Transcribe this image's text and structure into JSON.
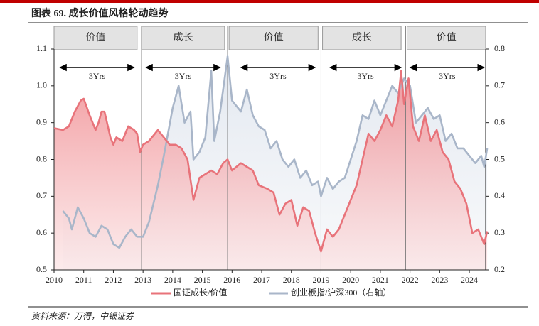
{
  "chart_data": {
    "type": "line",
    "title": "图表 69. 成长价值风格轮动趋势",
    "source": "资料来源：万得，中银证券",
    "xlim": [
      2010,
      2024.55
    ],
    "xticks": [
      2010,
      2011,
      2012,
      2013,
      2014,
      2015,
      2016,
      2017,
      2018,
      2019,
      2020,
      2021,
      2022,
      2023,
      2024
    ],
    "ylim": [
      0.5,
      1.1
    ],
    "yticks": [
      0.5,
      0.6,
      0.7,
      0.8,
      0.9,
      {
        "value": 1,
        "label": "1.0"
      },
      1.1
    ],
    "y2lim": [
      0.2,
      0.8
    ],
    "y2ticks": [
      0.2,
      0.3,
      0.4,
      0.5,
      0.6,
      0.7,
      0.8
    ],
    "regimes": [
      {
        "label": "价值",
        "start": 2010,
        "end": 2012.8
      },
      {
        "label": "成长",
        "start": 2012.95,
        "end": 2015.75
      },
      {
        "label": "价值",
        "start": 2015.9,
        "end": 2018.9
      },
      {
        "label": "成长",
        "start": 2019.05,
        "end": 2021.7
      },
      {
        "label": "价值",
        "start": 2021.9,
        "end": 2024.55
      }
    ],
    "dividers": [
      2012.95,
      2015.85,
      2019.0,
      2021.85
    ],
    "spans": [
      {
        "label": "3Yrs",
        "start": 2010.2,
        "end": 2012.7
      },
      {
        "label": "3Yrs",
        "start": 2013.1,
        "end": 2015.6
      },
      {
        "label": "3Yrs",
        "start": 2016.3,
        "end": 2018.8
      },
      {
        "label": "3Yrs",
        "start": 2019.3,
        "end": 2021.7
      },
      {
        "label": "3Yrs",
        "start": 2022.0,
        "end": 2024.5
      }
    ],
    "series": [
      {
        "name": "国证成长/价值",
        "color": "#e8737a",
        "x": [
          2010.0,
          2010.3,
          2010.5,
          2010.7,
          2010.9,
          2011.0,
          2011.2,
          2011.4,
          2011.5,
          2011.6,
          2011.7,
          2011.9,
          2012.0,
          2012.1,
          2012.3,
          2012.5,
          2012.7,
          2012.8,
          2012.9,
          2013.0,
          2013.2,
          2013.5,
          2013.7,
          2013.9,
          2014.1,
          2014.3,
          2014.5,
          2014.7,
          2014.9,
          2015.1,
          2015.3,
          2015.5,
          2015.7,
          2015.85,
          2016.0,
          2016.3,
          2016.5,
          2016.7,
          2016.9,
          2017.2,
          2017.4,
          2017.6,
          2017.8,
          2018.0,
          2018.2,
          2018.4,
          2018.6,
          2018.8,
          2019.0,
          2019.2,
          2019.4,
          2019.6,
          2019.8,
          2020.0,
          2020.2,
          2020.4,
          2020.6,
          2020.8,
          2021.0,
          2021.2,
          2021.4,
          2021.6,
          2021.7,
          2021.8,
          2021.95,
          2022.1,
          2022.3,
          2022.5,
          2022.7,
          2022.9,
          2023.1,
          2023.3,
          2023.5,
          2023.7,
          2023.9,
          2024.1,
          2024.3,
          2024.5,
          2024.6
        ],
        "values": [
          0.885,
          0.88,
          0.89,
          0.93,
          0.96,
          0.965,
          0.92,
          0.88,
          0.9,
          0.93,
          0.93,
          0.86,
          0.84,
          0.86,
          0.85,
          0.89,
          0.88,
          0.87,
          0.82,
          0.84,
          0.85,
          0.88,
          0.86,
          0.84,
          0.84,
          0.83,
          0.8,
          0.69,
          0.75,
          0.76,
          0.77,
          0.76,
          0.79,
          0.8,
          0.77,
          0.79,
          0.78,
          0.77,
          0.73,
          0.72,
          0.71,
          0.65,
          0.68,
          0.69,
          0.62,
          0.67,
          0.66,
          0.6,
          0.55,
          0.61,
          0.59,
          0.61,
          0.65,
          0.69,
          0.73,
          0.8,
          0.87,
          0.85,
          0.88,
          0.92,
          0.89,
          0.96,
          1.04,
          0.95,
          1.02,
          0.89,
          0.85,
          0.92,
          0.85,
          0.88,
          0.82,
          0.8,
          0.74,
          0.72,
          0.68,
          0.6,
          0.61,
          0.57,
          0.605
        ]
      },
      {
        "name": "创业板指/沪深300（右轴）",
        "color": "#a9b6c9",
        "axis": "y2",
        "x": [
          2010.3,
          2010.5,
          2010.6,
          2010.8,
          2011.0,
          2011.2,
          2011.4,
          2011.6,
          2011.8,
          2012.0,
          2012.2,
          2012.4,
          2012.6,
          2012.8,
          2013.0,
          2013.2,
          2013.5,
          2013.7,
          2014.0,
          2014.2,
          2014.4,
          2014.6,
          2014.7,
          2014.9,
          2015.1,
          2015.3,
          2015.4,
          2015.6,
          2015.85,
          2016.0,
          2016.3,
          2016.5,
          2016.7,
          2016.9,
          2017.1,
          2017.3,
          2017.5,
          2017.7,
          2017.9,
          2018.1,
          2018.3,
          2018.5,
          2018.7,
          2018.9,
          2019.0,
          2019.2,
          2019.4,
          2019.6,
          2019.8,
          2020.0,
          2020.2,
          2020.4,
          2020.6,
          2020.8,
          2021.0,
          2021.2,
          2021.4,
          2021.6,
          2021.8,
          2022.0,
          2022.2,
          2022.4,
          2022.6,
          2022.8,
          2023.0,
          2023.2,
          2023.4,
          2023.6,
          2023.8,
          2024.0,
          2024.2,
          2024.4,
          2024.5,
          2024.6
        ],
        "values": [
          0.36,
          0.34,
          0.31,
          0.37,
          0.34,
          0.3,
          0.29,
          0.32,
          0.31,
          0.27,
          0.26,
          0.29,
          0.31,
          0.29,
          0.29,
          0.33,
          0.43,
          0.51,
          0.64,
          0.7,
          0.6,
          0.63,
          0.5,
          0.52,
          0.56,
          0.74,
          0.55,
          0.63,
          0.78,
          0.66,
          0.63,
          0.69,
          0.62,
          0.59,
          0.58,
          0.53,
          0.55,
          0.5,
          0.48,
          0.5,
          0.45,
          0.47,
          0.43,
          0.44,
          0.4,
          0.45,
          0.42,
          0.44,
          0.45,
          0.5,
          0.55,
          0.62,
          0.61,
          0.66,
          0.62,
          0.66,
          0.7,
          0.68,
          0.72,
          0.7,
          0.6,
          0.62,
          0.64,
          0.61,
          0.62,
          0.55,
          0.57,
          0.53,
          0.53,
          0.51,
          0.49,
          0.51,
          0.48,
          0.53
        ]
      }
    ]
  }
}
